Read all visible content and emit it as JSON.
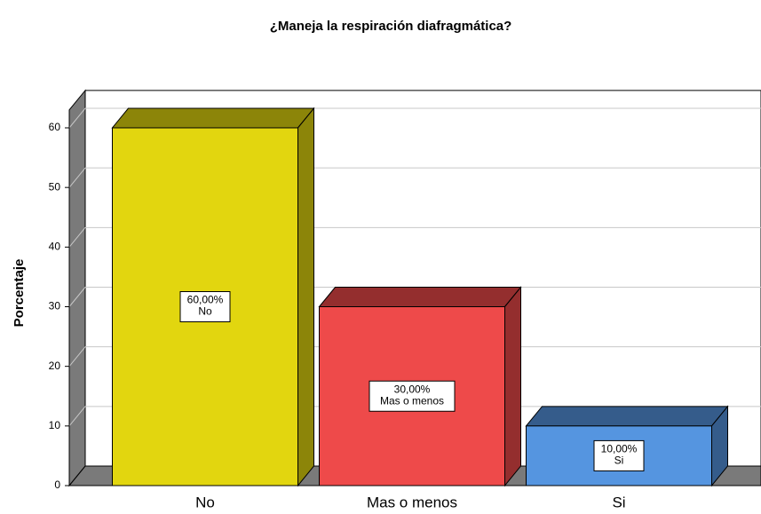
{
  "chart_data": {
    "type": "bar3d",
    "title": "¿Maneja la respiración diafragmática?",
    "y_label": "Porcentaje",
    "categories": [
      "No",
      "Mas o menos",
      "Si"
    ],
    "values": [
      60,
      30,
      10
    ],
    "value_labels": [
      "60,00%",
      "30,00%",
      "10,00%"
    ],
    "colors": [
      "#e2d60f",
      "#ee4a4a",
      "#5595e0"
    ],
    "ylim": [
      0,
      63
    ],
    "yticks": [
      0,
      10,
      20,
      30,
      40,
      50,
      60
    ],
    "grid": true
  }
}
